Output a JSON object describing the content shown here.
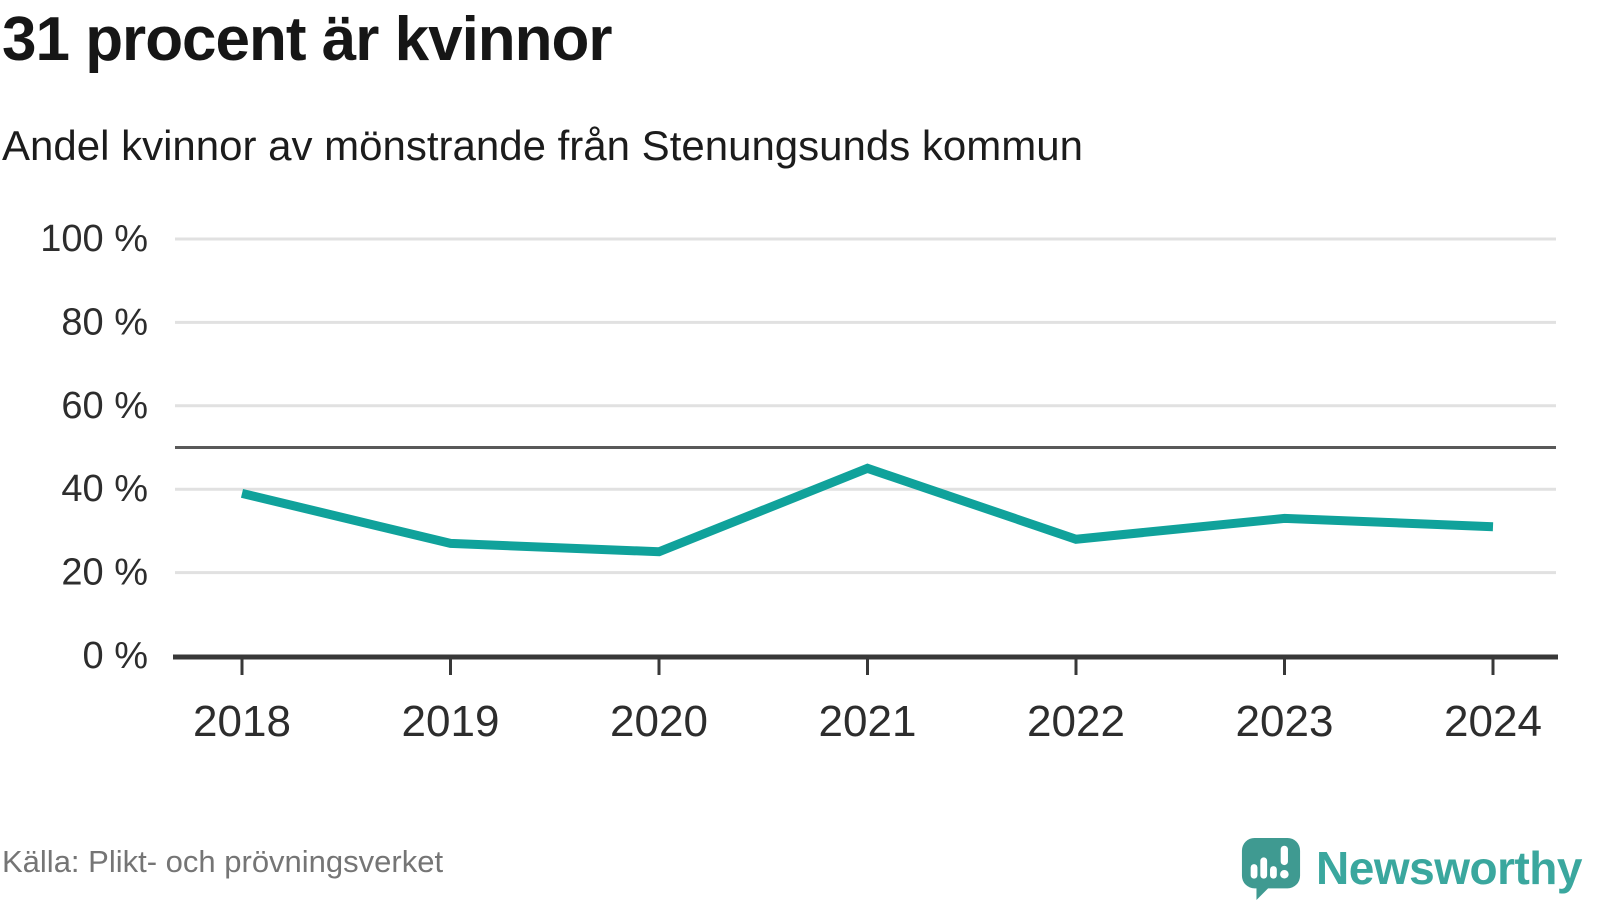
{
  "header": {
    "title": "31 procent är kvinnor",
    "subtitle": "Andel kvinnor av mönstrande från Stenungsunds kommun"
  },
  "chart_data": {
    "type": "line",
    "title": "31 procent är kvinnor",
    "subtitle": "Andel kvinnor av mönstrande från Stenungsunds kommun",
    "categories": [
      "2018",
      "2019",
      "2020",
      "2021",
      "2022",
      "2023",
      "2024"
    ],
    "values": [
      39,
      27,
      25,
      45,
      28,
      33,
      31
    ],
    "unit": "%",
    "ylim": [
      0,
      100
    ],
    "yticks": [
      0,
      20,
      40,
      60,
      80,
      100
    ],
    "ytick_suffix": " %",
    "reference_line": 50,
    "grid": "horizontal",
    "legend": "none",
    "line_color": "#10a29b",
    "reference_line_color": "#595959",
    "gridline_color": "#e1e1e1",
    "axis_color": "#383838",
    "tick_label_color": "#2d2d2d"
  },
  "footer": {
    "source": "Källa: Plikt- och prövningsverket"
  },
  "branding": {
    "name": "Newsworthy",
    "logo": "newsworthy-speech-bubble-bar-chart-icon",
    "brand_color": "#3aa79e",
    "mark_color": "#3f9a91"
  }
}
